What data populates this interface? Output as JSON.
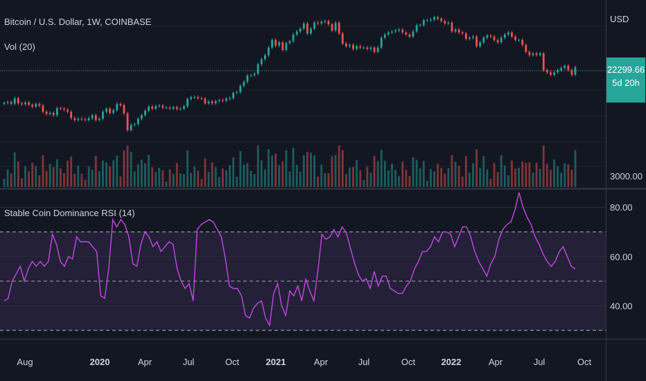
{
  "chart_title": "Bitcoin / U.S. Dollar, 1W, COINBASE",
  "volume_legend": "Vol (20)",
  "indicator_legend": "Stable Coin Dominance RSI (14)",
  "colors": {
    "background": "#131722",
    "up": "#26a69a",
    "down": "#ef5350",
    "rsi_line": "#c449e4",
    "rsi_band": "#2a2440",
    "grid": "#2a2e39",
    "text": "#d1d4dc"
  },
  "price_label": {
    "value": "22299.66",
    "countdown": "5d 20h"
  },
  "chart_data": [
    {
      "type": "candlestick",
      "title": "Bitcoin / U.S. Dollar, 1W, COINBASE",
      "y_axis_label": "USD",
      "volume_axis_tick": "3000.00",
      "last_price": 22299.66,
      "scale": "log",
      "grid": true,
      "close_series_approx": [
        10400,
        10600,
        10200,
        11500,
        10300,
        10100,
        10500,
        10000,
        9600,
        10200,
        9800,
        8600,
        8200,
        8400,
        8000,
        9300,
        9200,
        9000,
        8600,
        7500,
        7200,
        7400,
        7300,
        7200,
        7500,
        8000,
        7200,
        7400,
        8600,
        9200,
        8400,
        8900,
        10200,
        9900,
        8300,
        5800,
        6500,
        6600,
        7400,
        8000,
        8800,
        9600,
        9200,
        9700,
        9800,
        9400,
        9400,
        9200,
        9500,
        9100,
        9200,
        9700,
        11300,
        11700,
        11800,
        11500,
        11400,
        10300,
        10700,
        10300,
        10800,
        11000,
        10900,
        11400,
        11500,
        12900,
        13100,
        15000,
        16300,
        18700,
        18800,
        19400,
        23800,
        26500,
        28900,
        34000,
        40000,
        35500,
        38000,
        32300,
        37500,
        39000,
        45000,
        48000,
        51000,
        57000,
        46000,
        51000,
        58000,
        57000,
        59000,
        60000,
        56000,
        49000,
        58000,
        46000,
        37000,
        35000,
        36000,
        33000,
        35000,
        34000,
        34000,
        33000,
        34000,
        31000,
        34000,
        42000,
        45000,
        47000,
        48000,
        49000,
        50000,
        47000,
        45000,
        43000,
        48000,
        55000,
        55000,
        61000,
        61000,
        62000,
        65000,
        63000,
        60000,
        57000,
        58000,
        48000,
        50000,
        47000,
        46000,
        41000,
        42000,
        43000,
        35000,
        38000,
        42000,
        44000,
        43000,
        40000,
        38000,
        42000,
        45000,
        47000,
        43000,
        40000,
        40000,
        36000,
        31000,
        29000,
        30000,
        29000,
        30000,
        21000,
        20000,
        19000,
        20000,
        21000,
        22000,
        23000,
        21000,
        19000,
        22300
      ],
      "x_ticks": [
        "Aug",
        "2020",
        "Apr",
        "Jul",
        "Oct",
        "2021",
        "Apr",
        "Jul",
        "Oct",
        "2022",
        "Apr",
        "Jul",
        "Oct"
      ],
      "x_ticks_bold": [
        "2020",
        "2021",
        "2022"
      ]
    },
    {
      "type": "line",
      "title": "Stable Coin Dominance RSI (14)",
      "y_ticks": [
        80.0,
        60.0,
        40.0
      ],
      "y_tick_labels": [
        "80.00",
        "60.00",
        "40.00"
      ],
      "upper_band": 70,
      "middle_band": 50,
      "lower_band": 30,
      "ylim": [
        28,
        84
      ],
      "grid": true,
      "series": [
        {
          "values": [
            42,
            43,
            50,
            53,
            56,
            50,
            55,
            58,
            56,
            58,
            56,
            58,
            69,
            65,
            58,
            56,
            60,
            59,
            68,
            66,
            66,
            66,
            64,
            62,
            44,
            43,
            55,
            75,
            72,
            75,
            73,
            68,
            57,
            56,
            65,
            70,
            68,
            64,
            66,
            62,
            64,
            66,
            65,
            55,
            50,
            47,
            49,
            42,
            71,
            73,
            74,
            75,
            74,
            71,
            68,
            59,
            48,
            47,
            47,
            44,
            36,
            35,
            39,
            41,
            42,
            35,
            32,
            45,
            49,
            40,
            36,
            46,
            44,
            48,
            42,
            51,
            46,
            42,
            54,
            69,
            67,
            68,
            71,
            68,
            72,
            70,
            64,
            58,
            53,
            50,
            51,
            47,
            54,
            48,
            52,
            52,
            47,
            46,
            45,
            45,
            48,
            50,
            55,
            58,
            62,
            62,
            64,
            68,
            66,
            70,
            70,
            69,
            64,
            68,
            72,
            72,
            68,
            62,
            58,
            55,
            52,
            57,
            60,
            67,
            71,
            73,
            74,
            79,
            86,
            80,
            76,
            73,
            68,
            65,
            61,
            58,
            56,
            58,
            62,
            64,
            60,
            56,
            55
          ]
        }
      ]
    }
  ]
}
